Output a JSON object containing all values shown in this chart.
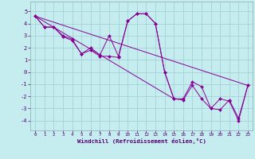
{
  "xlabel": "Windchill (Refroidissement éolien,°C)",
  "background_color": "#c5ecee",
  "grid_color": "#9ecdd4",
  "line_color": "#880099",
  "xlim": [
    -0.5,
    23.5
  ],
  "ylim": [
    -4.8,
    5.8
  ],
  "xticks": [
    0,
    1,
    2,
    3,
    4,
    5,
    6,
    7,
    8,
    9,
    10,
    11,
    12,
    13,
    14,
    15,
    16,
    17,
    18,
    19,
    20,
    21,
    22,
    23
  ],
  "yticks": [
    -4,
    -3,
    -2,
    -1,
    0,
    1,
    2,
    3,
    4,
    5
  ],
  "lines": [
    {
      "x": [
        0,
        1,
        2,
        3,
        4,
        5,
        6,
        7,
        8,
        9,
        10,
        11,
        12,
        13,
        14,
        15,
        16,
        17,
        18,
        19,
        20,
        21,
        22,
        23
      ],
      "y": [
        4.6,
        3.7,
        3.7,
        3.0,
        2.7,
        1.5,
        2.0,
        1.4,
        3.0,
        1.3,
        4.2,
        4.8,
        4.8,
        4.0,
        0.0,
        -2.2,
        -2.2,
        -0.8,
        -1.2,
        -3.0,
        -3.1,
        -2.3,
        -3.8,
        -1.1
      ],
      "markers": true
    },
    {
      "x": [
        0,
        1,
        2,
        3,
        4,
        5,
        6,
        7,
        8,
        9,
        10,
        11,
        12,
        13,
        14,
        15,
        16,
        17,
        18,
        19,
        20,
        21,
        22,
        23
      ],
      "y": [
        4.6,
        3.7,
        3.7,
        2.9,
        2.6,
        1.5,
        1.8,
        1.3,
        1.3,
        1.2,
        4.2,
        4.8,
        4.8,
        4.0,
        0.0,
        -2.2,
        -2.3,
        -1.1,
        -2.2,
        -3.0,
        -2.2,
        -2.4,
        -4.0,
        -1.1
      ],
      "markers": true
    },
    {
      "x": [
        0,
        23
      ],
      "y": [
        4.6,
        -1.1
      ],
      "markers": false
    },
    {
      "x": [
        0,
        15
      ],
      "y": [
        4.6,
        -2.2
      ],
      "markers": false
    }
  ]
}
